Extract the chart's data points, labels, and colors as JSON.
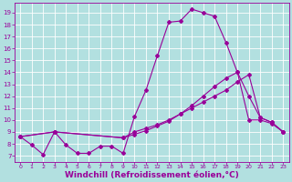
{
  "background_color": "#b2e0e0",
  "grid_color": "#ffffff",
  "line_color": "#990099",
  "xlabel": "Windchill (Refroidissement éolien,°C)",
  "xlabel_fontsize": 6.5,
  "ylabel_ticks": [
    7,
    8,
    9,
    10,
    11,
    12,
    13,
    14,
    15,
    16,
    17,
    18,
    19
  ],
  "xlabel_ticks": [
    0,
    1,
    2,
    3,
    4,
    5,
    6,
    7,
    8,
    9,
    10,
    11,
    12,
    13,
    14,
    15,
    16,
    17,
    18,
    19,
    20,
    21,
    22,
    23
  ],
  "ylim": [
    6.5,
    19.8
  ],
  "xlim": [
    -0.5,
    23.5
  ],
  "line1_x": [
    0,
    1,
    2,
    3,
    4,
    5,
    6,
    7,
    8,
    9,
    10,
    11,
    12,
    13,
    14,
    15,
    16,
    17,
    18,
    19,
    20,
    21,
    22,
    23
  ],
  "line1_y": [
    8.6,
    7.9,
    7.1,
    9.0,
    7.9,
    7.2,
    7.2,
    7.8,
    7.8,
    7.2,
    10.3,
    12.5,
    15.4,
    18.2,
    18.3,
    19.3,
    19.0,
    18.7,
    16.5,
    14.0,
    12.0,
    10.2,
    9.8,
    9.0
  ],
  "line2_x": [
    0,
    3,
    9,
    10,
    11,
    12,
    13,
    14,
    15,
    16,
    17,
    18,
    19,
    20,
    21,
    22,
    23
  ],
  "line2_y": [
    8.6,
    9.0,
    8.5,
    9.0,
    9.3,
    9.6,
    10.0,
    10.5,
    11.0,
    11.5,
    12.0,
    12.5,
    13.2,
    13.8,
    10.2,
    9.8,
    9.0
  ],
  "line3_x": [
    0,
    3,
    9,
    10,
    11,
    12,
    13,
    14,
    15,
    16,
    17,
    18,
    19,
    20,
    21,
    22,
    23
  ],
  "line3_y": [
    8.6,
    9.0,
    8.5,
    8.8,
    9.1,
    9.5,
    9.9,
    10.5,
    11.2,
    12.0,
    12.8,
    13.5,
    14.0,
    10.0,
    10.0,
    9.7,
    9.0
  ]
}
